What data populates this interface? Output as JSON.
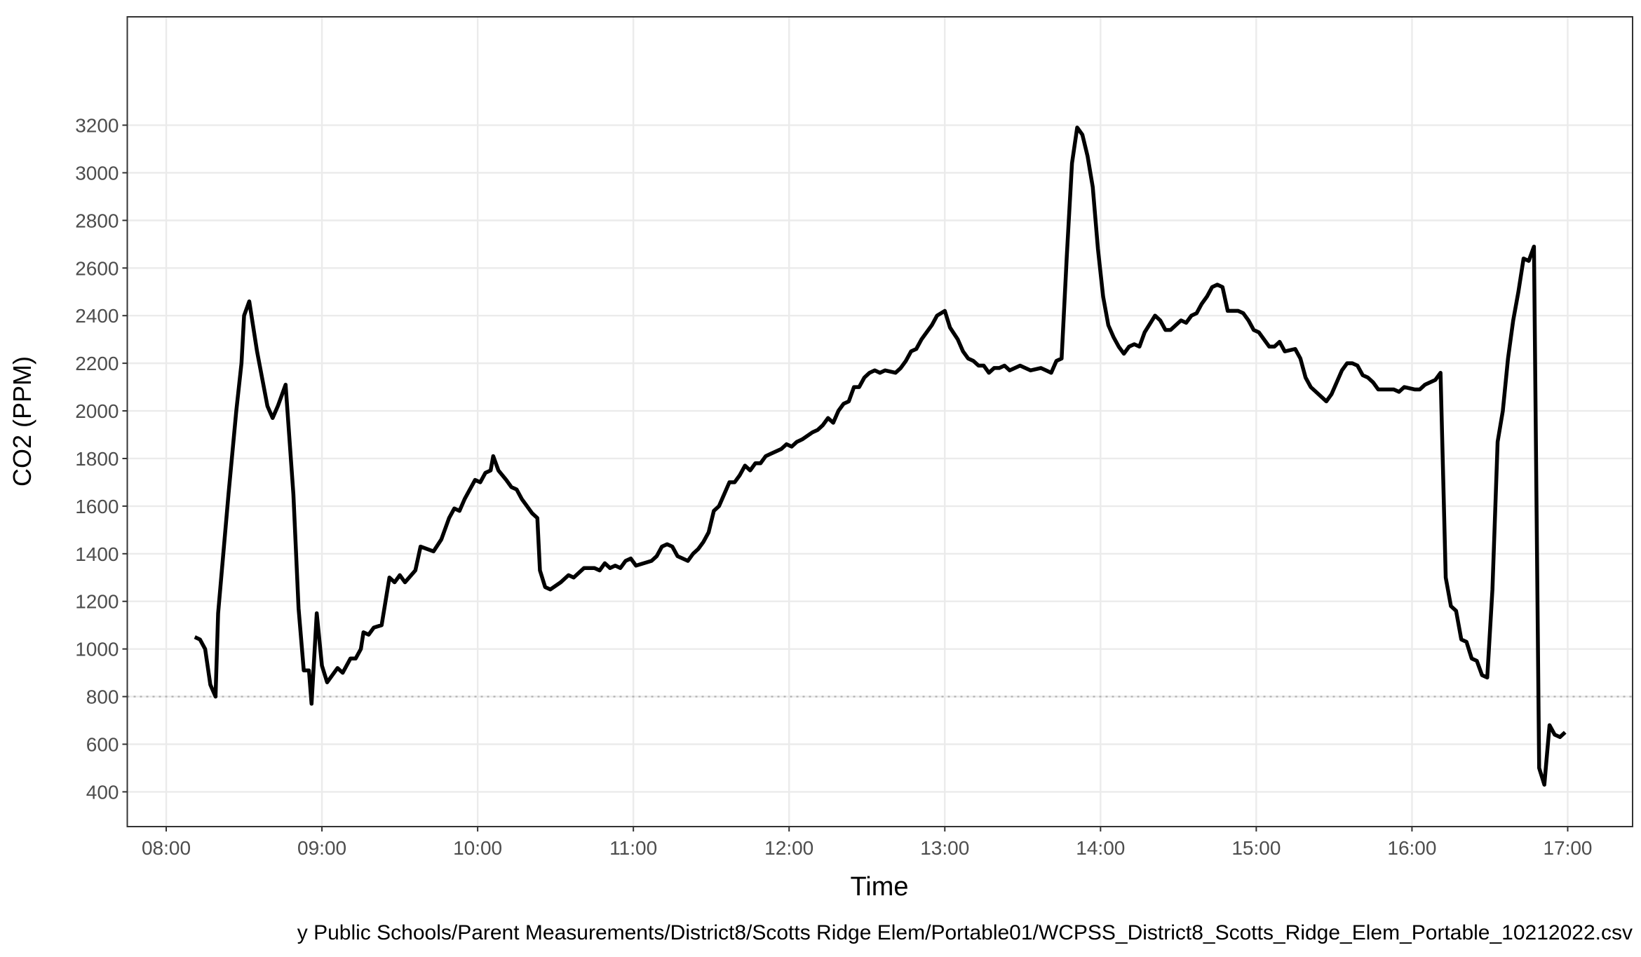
{
  "chart_data": {
    "type": "line",
    "x_label": "Time",
    "y_label": "CO2 (PPM)",
    "caption": "y Public Schools/Parent Measurements/District8/Scotts Ridge Elem/Portable01/WCPSS_District8_Scotts_Ridge_Elem_Portable_10212022.csv",
    "color": "#000000",
    "grid": true,
    "hline": 800,
    "xlim": [
      "07:45",
      "17:25"
    ],
    "xticks": [
      "08:00",
      "09:00",
      "10:00",
      "11:00",
      "12:00",
      "13:00",
      "14:00",
      "15:00",
      "16:00",
      "17:00"
    ],
    "ylim": [
      254,
      3655
    ],
    "yticks": [
      400,
      600,
      800,
      1000,
      1200,
      1400,
      1600,
      1800,
      2000,
      2200,
      2400,
      2600,
      2800,
      3000,
      3200
    ],
    "x": [
      "08:11",
      "08:13",
      "08:15",
      "08:17",
      "08:19",
      "08:20",
      "08:24",
      "08:27",
      "08:29",
      "08:30",
      "08:32",
      "08:35",
      "08:39",
      "08:41",
      "08:43",
      "08:46",
      "08:49",
      "08:51",
      "08:53",
      "08:55",
      "08:56",
      "08:58",
      "09:00",
      "09:02",
      "09:06",
      "09:08",
      "09:11",
      "09:13",
      "09:15",
      "09:16",
      "09:18",
      "09:20",
      "09:23",
      "09:26",
      "09:28",
      "09:30",
      "09:32",
      "09:36",
      "09:38",
      "09:43",
      "09:46",
      "09:49",
      "09:51",
      "09:53",
      "09:55",
      "09:59",
      "10:01",
      "10:03",
      "10:05",
      "10:06",
      "10:08",
      "10:11",
      "10:13",
      "10:15",
      "10:17",
      "10:19",
      "10:21",
      "10:23",
      "10:24",
      "10:26",
      "10:28",
      "10:32",
      "10:35",
      "10:37",
      "10:41",
      "10:45",
      "10:47",
      "10:49",
      "10:51",
      "10:53",
      "10:55",
      "10:57",
      "10:59",
      "11:01",
      "11:07",
      "11:09",
      "11:11",
      "11:13",
      "11:15",
      "11:17",
      "11:21",
      "11:23",
      "11:25",
      "11:27",
      "11:29",
      "11:31",
      "11:33",
      "11:35",
      "11:37",
      "11:39",
      "11:41",
      "11:43",
      "11:45",
      "11:47",
      "11:49",
      "11:51",
      "11:53",
      "11:57",
      "11:59",
      "12:01",
      "12:03",
      "12:05",
      "12:09",
      "12:11",
      "12:13",
      "12:15",
      "12:17",
      "12:19",
      "12:21",
      "12:23",
      "12:25",
      "12:27",
      "12:29",
      "12:31",
      "12:33",
      "12:35",
      "12:37",
      "12:41",
      "12:43",
      "12:45",
      "12:47",
      "12:49",
      "12:51",
      "12:55",
      "12:57",
      "13:00",
      "13:02",
      "13:05",
      "13:07",
      "13:09",
      "13:11",
      "13:13",
      "13:15",
      "13:17",
      "13:19",
      "13:21",
      "13:23",
      "13:25",
      "13:27",
      "13:29",
      "13:31",
      "13:33",
      "13:37",
      "13:39",
      "13:41",
      "13:43",
      "13:45",
      "13:47",
      "13:49",
      "13:51",
      "13:53",
      "13:55",
      "13:57",
      "13:59",
      "14:01",
      "14:03",
      "14:05",
      "14:07",
      "14:09",
      "14:11",
      "14:13",
      "14:15",
      "14:17",
      "14:21",
      "14:23",
      "14:25",
      "14:27",
      "14:31",
      "14:33",
      "14:35",
      "14:37",
      "14:39",
      "14:41",
      "14:43",
      "14:45",
      "14:47",
      "14:49",
      "14:53",
      "14:55",
      "14:57",
      "14:59",
      "15:01",
      "15:05",
      "15:07",
      "15:09",
      "15:11",
      "15:15",
      "15:17",
      "15:19",
      "15:21",
      "15:23",
      "15:25",
      "15:27",
      "15:29",
      "15:31",
      "15:33",
      "15:35",
      "15:37",
      "15:39",
      "15:41",
      "15:43",
      "15:45",
      "15:47",
      "15:51",
      "15:53",
      "15:55",
      "15:57",
      "16:01",
      "16:03",
      "16:05",
      "16:09",
      "16:11",
      "16:13",
      "16:15",
      "16:17",
      "16:19",
      "16:21",
      "16:23",
      "16:25",
      "16:27",
      "16:29",
      "16:31",
      "16:33",
      "16:35",
      "16:37",
      "16:39",
      "16:41",
      "16:43",
      "16:45",
      "16:47",
      "16:49",
      "16:51",
      "16:53",
      "16:55",
      "16:57",
      "16:59"
    ],
    "values": [
      1050,
      1040,
      1000,
      850,
      800,
      1150,
      1650,
      2000,
      2200,
      2400,
      2460,
      2250,
      2020,
      1970,
      2020,
      2110,
      1650,
      1170,
      910,
      910,
      770,
      1150,
      930,
      860,
      920,
      900,
      960,
      960,
      1000,
      1070,
      1060,
      1090,
      1100,
      1300,
      1280,
      1310,
      1280,
      1330,
      1430,
      1410,
      1460,
      1550,
      1590,
      1580,
      1630,
      1710,
      1700,
      1740,
      1750,
      1810,
      1750,
      1710,
      1680,
      1670,
      1630,
      1600,
      1570,
      1550,
      1330,
      1260,
      1250,
      1280,
      1310,
      1300,
      1340,
      1340,
      1330,
      1360,
      1340,
      1350,
      1340,
      1370,
      1380,
      1350,
      1370,
      1390,
      1430,
      1440,
      1430,
      1390,
      1370,
      1400,
      1420,
      1450,
      1490,
      1580,
      1600,
      1650,
      1700,
      1700,
      1730,
      1770,
      1750,
      1780,
      1780,
      1810,
      1820,
      1840,
      1860,
      1850,
      1870,
      1880,
      1910,
      1920,
      1940,
      1970,
      1950,
      2000,
      2030,
      2040,
      2100,
      2100,
      2140,
      2160,
      2170,
      2160,
      2170,
      2160,
      2180,
      2210,
      2250,
      2260,
      2300,
      2360,
      2400,
      2420,
      2350,
      2300,
      2250,
      2220,
      2210,
      2190,
      2190,
      2160,
      2180,
      2180,
      2190,
      2170,
      2180,
      2190,
      2180,
      2170,
      2180,
      2170,
      2160,
      2210,
      2220,
      2650,
      3040,
      3190,
      3160,
      3070,
      2940,
      2680,
      2480,
      2360,
      2310,
      2270,
      2240,
      2270,
      2280,
      2270,
      2330,
      2400,
      2380,
      2340,
      2340,
      2380,
      2370,
      2400,
      2410,
      2450,
      2480,
      2520,
      2530,
      2520,
      2420,
      2420,
      2410,
      2380,
      2340,
      2330,
      2270,
      2270,
      2290,
      2250,
      2260,
      2220,
      2140,
      2100,
      2080,
      2060,
      2040,
      2070,
      2120,
      2170,
      2200,
      2200,
      2190,
      2150,
      2140,
      2120,
      2090,
      2090,
      2090,
      2080,
      2100,
      2090,
      2090,
      2110,
      2130,
      2160,
      1300,
      1180,
      1160,
      1040,
      1030,
      960,
      950,
      890,
      880,
      1250,
      1870,
      2000,
      2220,
      2380,
      2500,
      2640,
      2630,
      2690,
      500,
      430,
      680,
      640,
      630,
      650
    ]
  }
}
